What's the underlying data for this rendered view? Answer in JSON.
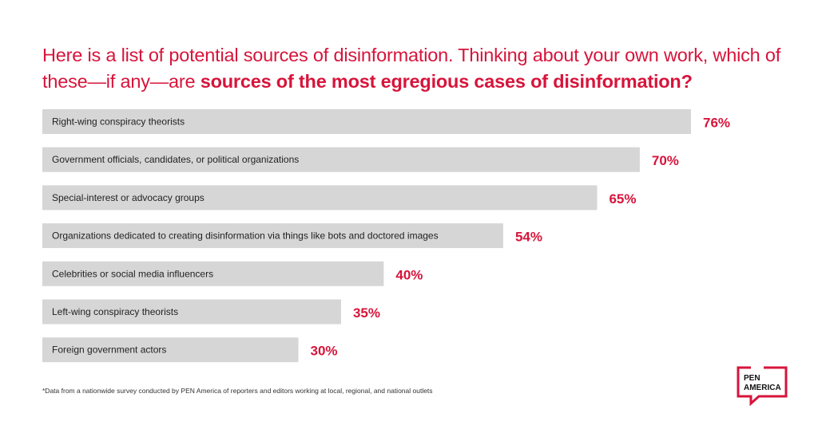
{
  "chart_data": {
    "type": "bar",
    "orientation": "horizontal",
    "title_plain": "Here is a list of potential sources of disinformation. Thinking about your own work, which of these—if any—are ",
    "title_bold": "sources of the most egregious cases of disinformation?",
    "categories": [
      "Right-wing conspiracy theorists",
      "Government officials, candidates, or political organizations",
      "Special-interest or advocacy groups",
      "Organizations dedicated to creating disinformation via things like bots and doctored images",
      "Celebrities or social media influencers",
      "Left-wing conspiracy theorists",
      "Foreign government actors"
    ],
    "values": [
      76,
      70,
      65,
      54,
      40,
      35,
      30
    ],
    "value_labels": [
      "76%",
      "70%",
      "65%",
      "54%",
      "40%",
      "35%",
      "30%"
    ],
    "xlim": [
      0,
      100
    ],
    "unit": "%",
    "grid": false,
    "colors": {
      "bar": "#d6d6d6",
      "accent": "#d7143b",
      "text": "#222222"
    }
  },
  "footnote": "*Data from a nationwide survey conducted by PEN America of reporters and editors working at local, regional, and national outlets",
  "logo": {
    "line1": "PEN",
    "line2": "AMERICA"
  }
}
